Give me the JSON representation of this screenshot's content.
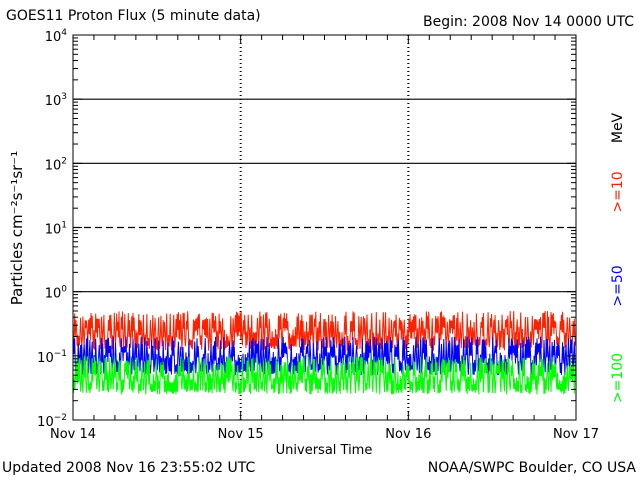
{
  "header": {
    "title": "GOES11 Proton Flux (5 minute data)",
    "begin": "Begin: 2008 Nov 14 0000 UTC"
  },
  "footer": {
    "updated": "Updated 2008 Nov 16 23:55:02 UTC",
    "credit": "NOAA/SWPC Boulder, CO USA"
  },
  "chart_data": {
    "type": "line",
    "title": "GOES11 Proton Flux (5 minute data)",
    "xlabel": "Universal Time",
    "ylabel": "Particles cm⁻²s⁻¹sr⁻¹",
    "yscale": "log",
    "ylim": [
      0.01,
      10000
    ],
    "y_ticks": [
      "10⁻²",
      "10⁻¹",
      "10⁰",
      "10¹",
      "10²",
      "10³",
      "10⁴"
    ],
    "y_tick_exponents": [
      -2,
      -1,
      0,
      1,
      2,
      3,
      4
    ],
    "x_ticks": [
      "Nov 14",
      "Nov 15",
      "Nov 16",
      "Nov 17"
    ],
    "xlim": [
      "2008-11-14 00:00",
      "2008-11-17 00:00"
    ],
    "threshold_lines": [
      1,
      10,
      100,
      1000
    ],
    "dashed_threshold_lines": [
      10
    ],
    "unit_label": "MeV",
    "series": [
      {
        "name": ">=10",
        "color": "#ff2000",
        "typical_range": [
          0.12,
          0.5
        ]
      },
      {
        "name": ">=50",
        "color": "#0000ff",
        "typical_range": [
          0.05,
          0.2
        ]
      },
      {
        "name": ">=100",
        "color": "#00ff00",
        "typical_range": [
          0.025,
          0.1
        ]
      }
    ]
  }
}
